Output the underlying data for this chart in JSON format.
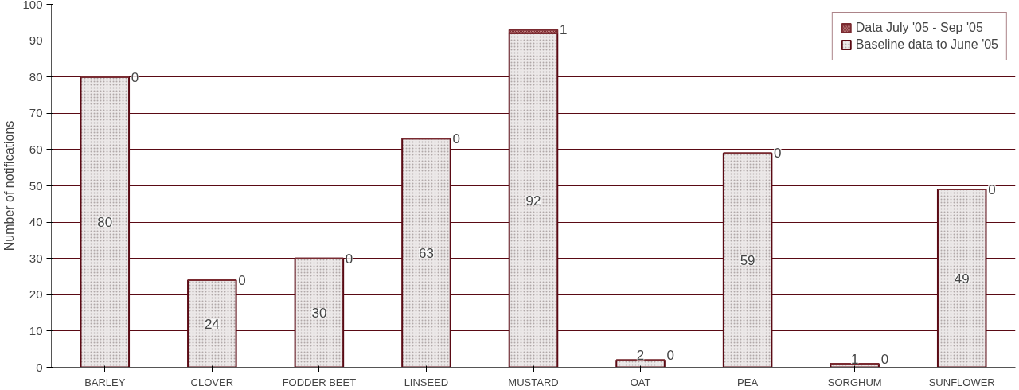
{
  "chart_data": {
    "type": "bar",
    "stacked": true,
    "ylabel": "Number of notifications",
    "categories": [
      "BARLEY",
      "CLOVER",
      "FODDER BEET",
      "LINSEED",
      "MUSTARD",
      "OAT",
      "PEA",
      "SORGHUM",
      "SUNFLOWER"
    ],
    "series": [
      {
        "name": "Baseline data to June '05",
        "color": "#ece8e8",
        "values": [
          80,
          24,
          30,
          63,
          92,
          2,
          59,
          1,
          49
        ]
      },
      {
        "name": "Data July '05 - Sep '05",
        "color": "#7a2a30",
        "values": [
          0,
          0,
          0,
          0,
          1,
          0,
          0,
          0,
          0
        ]
      }
    ],
    "ylim": [
      0,
      100
    ],
    "yticks": [
      0,
      10,
      20,
      30,
      40,
      50,
      60,
      70,
      80,
      90,
      100
    ],
    "grid": "y",
    "legend": "top right",
    "data_labels": true
  }
}
